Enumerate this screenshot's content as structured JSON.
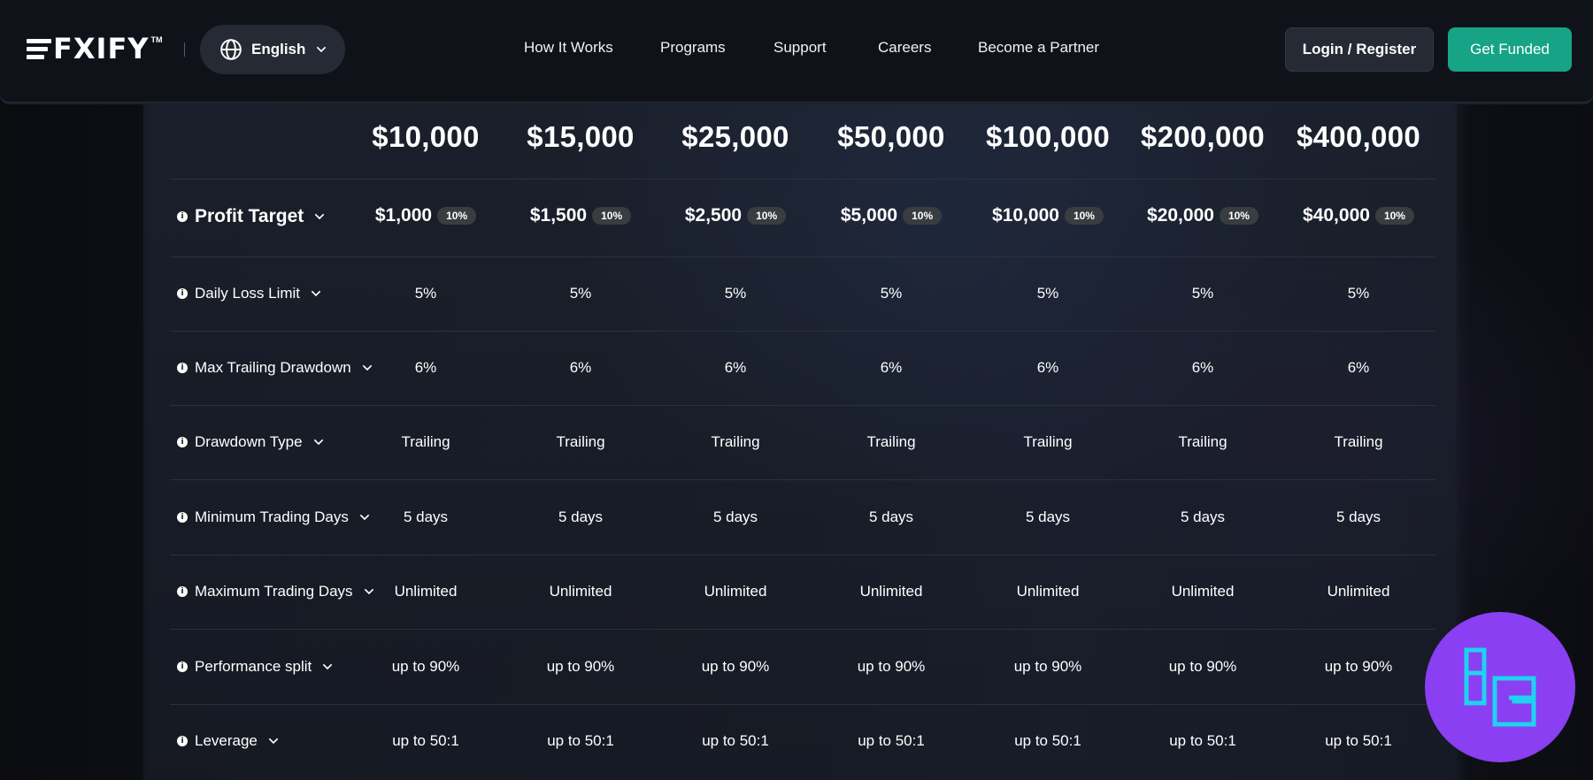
{
  "brand": {
    "name": "FXIFY",
    "trademark": "TM"
  },
  "language": {
    "label": "English"
  },
  "nav": {
    "links": [
      "How It Works",
      "Programs",
      "Support",
      "Careers",
      "Become a Partner"
    ],
    "login_label": "Login / Register",
    "cta_label": "Get Funded"
  },
  "colors": {
    "accent": "#17a486",
    "watermark": "#8a3ff2",
    "watermark_mark": "#1fd2f0"
  },
  "table": {
    "columns": [
      "$10,000",
      "$15,000",
      "$25,000",
      "$50,000",
      "$100,000",
      "$200,000",
      "$400,000"
    ],
    "profit_target": {
      "label": "Profit Target",
      "values": [
        "$1,000",
        "$1,500",
        "$2,500",
        "$5,000",
        "$10,000",
        "$20,000",
        "$40,000"
      ],
      "badge": "10%"
    },
    "rows": [
      {
        "label": "Daily Loss Limit",
        "values": [
          "5%",
          "5%",
          "5%",
          "5%",
          "5%",
          "5%",
          "5%"
        ]
      },
      {
        "label": "Max Trailing Drawdown",
        "values": [
          "6%",
          "6%",
          "6%",
          "6%",
          "6%",
          "6%",
          "6%"
        ]
      },
      {
        "label": "Drawdown Type",
        "values": [
          "Trailing",
          "Trailing",
          "Trailing",
          "Trailing",
          "Trailing",
          "Trailing",
          "Trailing"
        ]
      },
      {
        "label": "Minimum Trading Days",
        "values": [
          "5 days",
          "5 days",
          "5 days",
          "5 days",
          "5 days",
          "5 days",
          "5 days"
        ]
      },
      {
        "label": "Maximum Trading Days",
        "values": [
          "Unlimited",
          "Unlimited",
          "Unlimited",
          "Unlimited",
          "Unlimited",
          "Unlimited",
          "Unlimited"
        ]
      },
      {
        "label": "Performance split",
        "values": [
          "up to 90%",
          "up to 90%",
          "up to 90%",
          "up to 90%",
          "up to 90%",
          "up to 90%",
          "up to 90%"
        ]
      },
      {
        "label": "Leverage",
        "values": [
          "up to 50:1",
          "up to 50:1",
          "up to 50:1",
          "up to 50:1",
          "up to 50:1",
          "up to 50:1",
          "up to 50:1"
        ]
      }
    ]
  }
}
